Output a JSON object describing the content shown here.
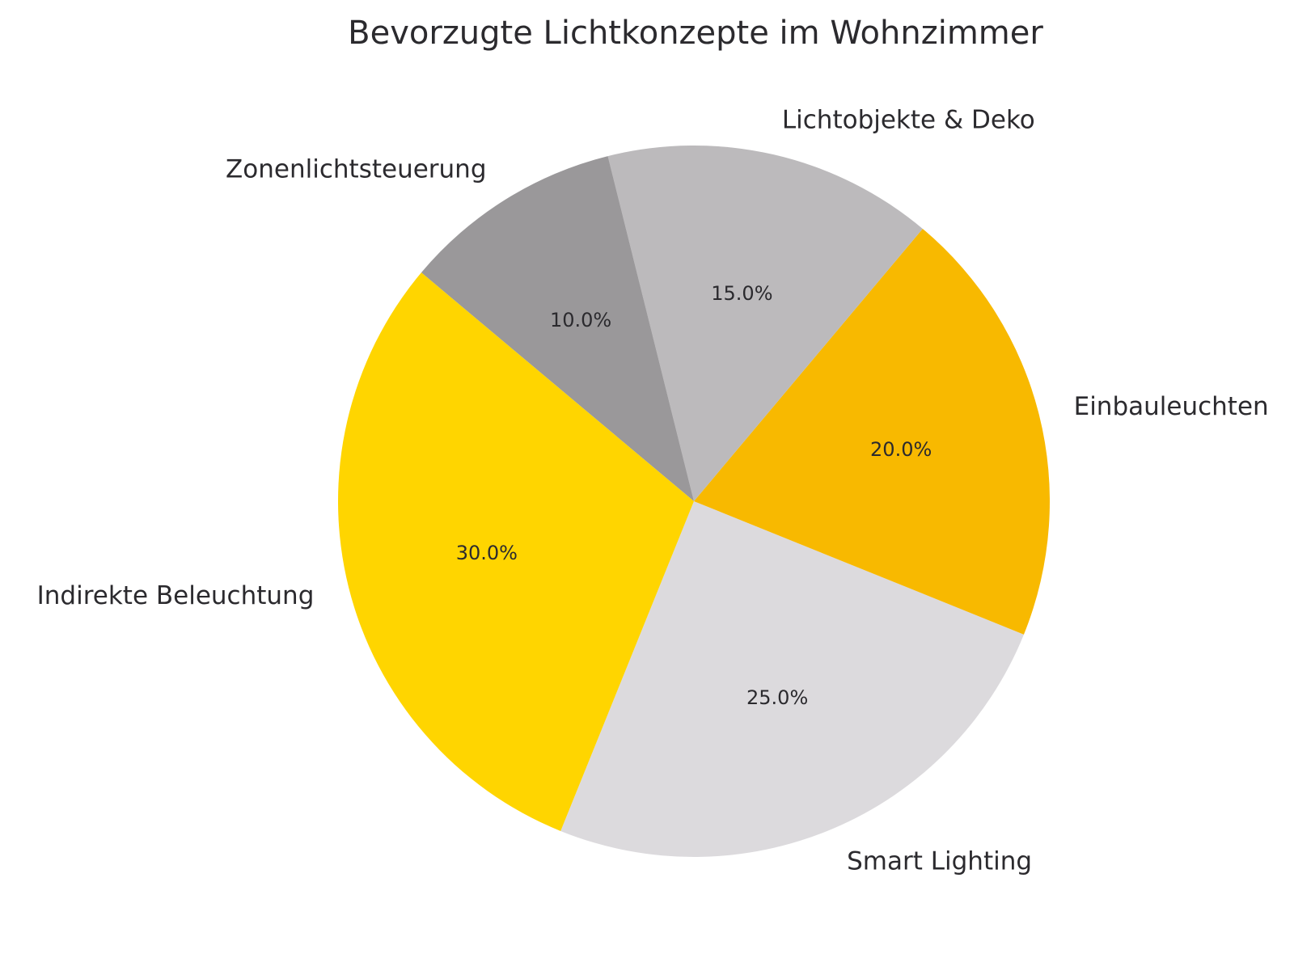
{
  "chart_data": {
    "type": "pie",
    "title": "Bevorzugte Lichtkonzepte im Wohnzimmer",
    "categories": [
      "Smart Lighting",
      "Einbauleuchten",
      "Lichtobjekte & Deko",
      "Zonenlichtsteuerung",
      "Indirekte Beleuchtung"
    ],
    "values": [
      25.0,
      20.0,
      15.0,
      10.0,
      30.0
    ],
    "value_labels": [
      "25.0%",
      "20.0%",
      "15.0%",
      "10.0%",
      "30.0%"
    ],
    "colors": [
      "#dcdadd",
      "#f8b900",
      "#bcbabc",
      "#9a989a",
      "#ffd500"
    ],
    "start_angle_deg": 248,
    "direction": "counterclockwise",
    "legend": "none"
  }
}
